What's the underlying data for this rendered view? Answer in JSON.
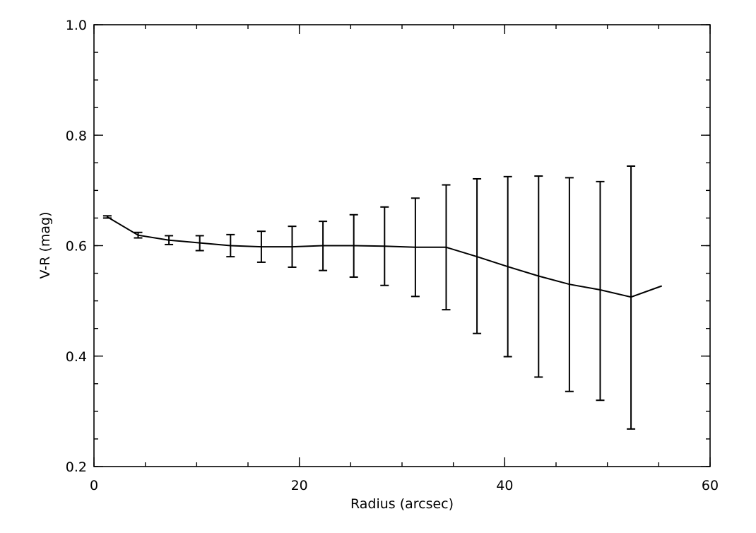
{
  "chart_data": {
    "type": "line",
    "title": "",
    "xlabel": "Radius (arcsec)",
    "ylabel": "V-R (mag)",
    "xlim": [
      0,
      60
    ],
    "ylim": [
      0.2,
      1.0
    ],
    "x_ticks": [
      {
        "value": 0,
        "label": "0"
      },
      {
        "value": 20,
        "label": "20"
      },
      {
        "value": 40,
        "label": "40"
      },
      {
        "value": 60,
        "label": "60"
      }
    ],
    "y_ticks": [
      {
        "value": 0.2,
        "label": "0.2"
      },
      {
        "value": 0.4,
        "label": "0.4"
      },
      {
        "value": 0.6,
        "label": "0.6"
      },
      {
        "value": 0.8,
        "label": "0.8"
      },
      {
        "value": 1.0,
        "label": "1.0"
      }
    ],
    "x_minor_step": 5,
    "y_minor_step": 0.05,
    "grid": false,
    "line_color": "#000000",
    "series": [
      {
        "x": [
          1.3,
          4.3,
          7.3,
          10.3,
          13.3,
          16.3,
          19.3,
          22.3,
          25.3,
          28.3,
          31.3,
          34.3,
          37.3,
          40.3,
          43.3,
          46.3,
          49.3,
          52.3,
          55.3
        ],
        "y": [
          0.652,
          0.619,
          0.61,
          0.605,
          0.6,
          0.598,
          0.598,
          0.6,
          0.6,
          0.599,
          0.597,
          0.597,
          0.58,
          0.562,
          0.545,
          0.53,
          0.52,
          0.507,
          0.527
        ],
        "err_low": [
          0.65,
          0.614,
          0.602,
          0.591,
          0.58,
          0.57,
          0.561,
          0.555,
          0.543,
          0.528,
          0.508,
          0.484,
          0.441,
          0.399,
          0.362,
          0.336,
          0.32,
          0.268,
          null
        ],
        "err_high": [
          0.654,
          0.624,
          0.618,
          0.618,
          0.62,
          0.626,
          0.635,
          0.644,
          0.656,
          0.67,
          0.686,
          0.71,
          0.721,
          0.725,
          0.726,
          0.723,
          0.716,
          0.744,
          null
        ]
      }
    ]
  }
}
